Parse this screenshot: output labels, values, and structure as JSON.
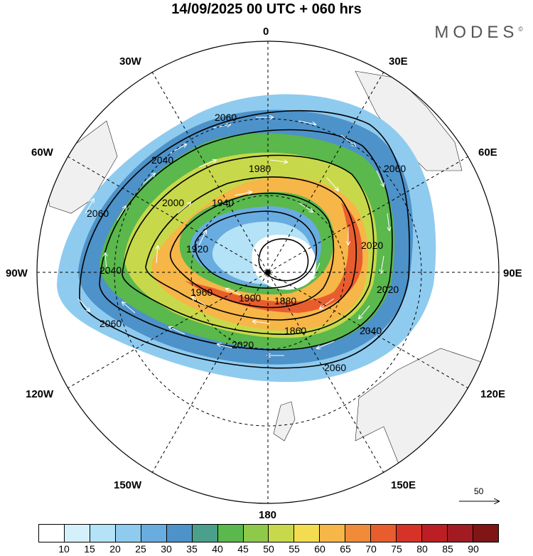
{
  "header": {
    "title": "14/09/2025  00 UTC  + 060 hrs",
    "brand": "MODES",
    "brand_mark": "©"
  },
  "map": {
    "projection": "South polar stereographic",
    "longitude_labels": {
      "top": "0",
      "bottom": "180",
      "left": "90W",
      "right": "90E",
      "upper_left_30": "30W",
      "upper_left_60": "60W",
      "upper_right_30": "30E",
      "upper_right_60": "60E",
      "lower_left_120": "120W",
      "lower_left_150": "150W",
      "lower_right_120": "120E",
      "lower_right_150": "150E"
    },
    "contour_labels": [
      "2060",
      "2040",
      "1980",
      "1940",
      "2000",
      "1920",
      "1880",
      "1900",
      "1960",
      "2020",
      "1860",
      "2060",
      "2060",
      "2040",
      "2060",
      "2020",
      "2060",
      "2040",
      "2020"
    ],
    "wind_reference": "50"
  },
  "colorbar": {
    "colors": [
      "#ffffff",
      "#d4f0fb",
      "#b4e2f7",
      "#8fcbef",
      "#68ace0",
      "#4d92c9",
      "#4aa08a",
      "#5ab84c",
      "#8fc94a",
      "#c7d94a",
      "#f4dc50",
      "#f6b648",
      "#f08b3a",
      "#e85d2e",
      "#d63228",
      "#bd1e24",
      "#a31b22",
      "#801515"
    ],
    "ticks": [
      "10",
      "15",
      "20",
      "25",
      "30",
      "35",
      "40",
      "45",
      "50",
      "55",
      "60",
      "65",
      "70",
      "75",
      "80",
      "85",
      "90"
    ]
  }
}
